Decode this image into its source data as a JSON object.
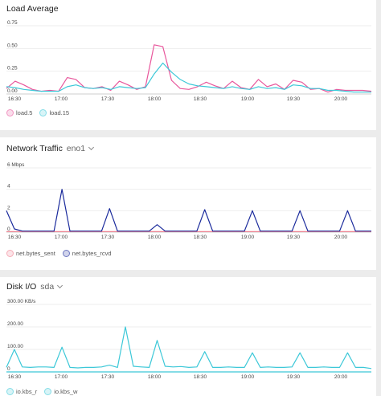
{
  "panels": [
    {
      "id": "load",
      "title": "Load Average",
      "selector": "",
      "chart_data": {
        "type": "line",
        "title": "Load Average",
        "ylim": [
          0,
          0.75
        ],
        "yticks": [
          "0.75",
          "0.50",
          "0.25",
          "0.00"
        ],
        "ytick_values": [
          0.75,
          0.5,
          0.25,
          0
        ],
        "xticks": [
          "16:30",
          "17:00",
          "17:30",
          "18:00",
          "18:30",
          "19:00",
          "19:30",
          "20:00"
        ],
        "series": [
          {
            "name": "load.5",
            "color": "#e8579c",
            "values": [
              0.06,
              0.14,
              0.1,
              0.05,
              0.03,
              0.04,
              0.03,
              0.18,
              0.16,
              0.07,
              0.06,
              0.08,
              0.04,
              0.14,
              0.1,
              0.05,
              0.08,
              0.54,
              0.52,
              0.15,
              0.06,
              0.05,
              0.08,
              0.13,
              0.09,
              0.06,
              0.14,
              0.07,
              0.05,
              0.16,
              0.08,
              0.11,
              0.05,
              0.15,
              0.13,
              0.05,
              0.06,
              0.02,
              0.05,
              0.04,
              0.04,
              0.04,
              0.03
            ]
          },
          {
            "name": "load.15",
            "color": "#3cc8d8",
            "values": [
              0.08,
              0.07,
              0.05,
              0.04,
              0.03,
              0.03,
              0.03,
              0.08,
              0.1,
              0.07,
              0.06,
              0.07,
              0.05,
              0.08,
              0.07,
              0.06,
              0.07,
              0.22,
              0.34,
              0.24,
              0.16,
              0.11,
              0.09,
              0.08,
              0.07,
              0.06,
              0.08,
              0.06,
              0.05,
              0.08,
              0.06,
              0.07,
              0.05,
              0.1,
              0.09,
              0.06,
              0.06,
              0.04,
              0.04,
              0.03,
              0.02,
              0.02,
              0.02
            ]
          }
        ]
      }
    },
    {
      "id": "net",
      "title": "Network Traffic",
      "selector": "eno1",
      "chart_data": {
        "type": "line",
        "title": "Network Traffic",
        "ylim": [
          0,
          6
        ],
        "yticks": [
          "6 Mbps",
          "4",
          "2",
          "0"
        ],
        "ytick_values": [
          6,
          4,
          2,
          0
        ],
        "xticks": [
          "16:30",
          "17:00",
          "17:30",
          "18:00",
          "18:30",
          "19:00",
          "19:30",
          "20:00"
        ],
        "series": [
          {
            "name": "net.bytes_sent",
            "color": "#f07a8a",
            "values": [
              0.05,
              0.05,
              0.05,
              0.05,
              0.05,
              0.05,
              0.05,
              0.05,
              0.05,
              0.05,
              0.05,
              0.05,
              0.05,
              0.05,
              0.05,
              0.05,
              0.05,
              0.05,
              0.05,
              0.05,
              0.05,
              0.05,
              0.05,
              0.05,
              0.05,
              0.05,
              0.05,
              0.05,
              0.05,
              0.05,
              0.05,
              0.05,
              0.05,
              0.05,
              0.05,
              0.05,
              0.05,
              0.05,
              0.05,
              0.05,
              0.05,
              0.05,
              0.05
            ]
          },
          {
            "name": "net.bytes_rcvd",
            "color": "#1a2a9c",
            "values": [
              2.0,
              0.3,
              0.1,
              0.1,
              0.1,
              0.1,
              0.1,
              4.0,
              0.1,
              0.1,
              0.1,
              0.1,
              0.1,
              2.2,
              0.1,
              0.1,
              0.1,
              0.1,
              0.1,
              0.7,
              0.1,
              0.1,
              0.1,
              0.1,
              0.1,
              2.1,
              0.1,
              0.1,
              0.1,
              0.1,
              0.1,
              2.0,
              0.1,
              0.1,
              0.1,
              0.1,
              0.1,
              2.0,
              0.1,
              0.1,
              0.1,
              0.1,
              0.1,
              2.0,
              0.1,
              0.1,
              0.1
            ]
          }
        ]
      }
    },
    {
      "id": "disk",
      "title": "Disk I/O",
      "selector": "sda",
      "chart_data": {
        "type": "line",
        "title": "Disk I/O",
        "ylim": [
          0,
          300
        ],
        "yticks": [
          "300.00 KB/s",
          "200.00",
          "100.00",
          "0"
        ],
        "ytick_values": [
          300,
          200,
          100,
          0
        ],
        "xticks": [
          "16:30",
          "17:00",
          "17:30",
          "18:00",
          "18:30",
          "19:00",
          "19:30",
          "20:00"
        ],
        "series": [
          {
            "name": "io.kbs_r",
            "color": "#3cc8d8",
            "values": [
              0,
              0,
              0,
              0,
              0,
              0,
              0,
              0,
              0,
              0,
              0,
              0,
              0,
              0,
              0,
              0,
              0,
              0,
              0,
              0,
              0,
              0,
              0,
              0,
              0,
              0,
              0,
              0,
              0,
              0,
              0,
              0,
              0,
              0,
              0,
              0,
              0,
              0,
              0,
              0,
              0,
              0,
              0,
              0,
              0,
              0,
              0
            ]
          },
          {
            "name": "io.kbs_w",
            "color": "#3cc8d8",
            "values": [
              20,
              100,
              22,
              20,
              22,
              22,
              20,
              110,
              20,
              18,
              20,
              20,
              22,
              30,
              20,
              200,
              25,
              22,
              20,
              140,
              25,
              22,
              24,
              20,
              22,
              90,
              20,
              20,
              22,
              20,
              20,
              85,
              20,
              22,
              20,
              20,
              22,
              85,
              20,
              20,
              22,
              20,
              20,
              85,
              20,
              20,
              15
            ]
          }
        ]
      }
    }
  ],
  "legend_icon": "circle-swatch"
}
